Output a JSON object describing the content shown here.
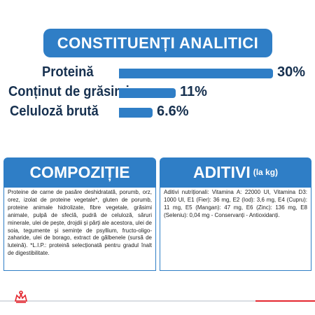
{
  "banner": {
    "title": "CONSTITUENȚI ANALITICI"
  },
  "analytics": [
    {
      "label": "Proteină",
      "value": "30%",
      "fraction": 0.3
    },
    {
      "label": "Conținut de grăsimi",
      "value": "11%",
      "fraction": 0.11
    },
    {
      "label": "Celuloză brută",
      "value": "6.6%",
      "fraction": 0.066
    }
  ],
  "composition": {
    "title": "COMPOZIȚIE",
    "text": "Proteine de carne de pasăre deshidratată, porumb, orz, orez, izolat de proteine vegetale*, gluten de porumb, proteine animale hidrolizate, fibre vegetale, grăsimi animale, pulpă de sfeclă, pudră de celuloză, săruri minerale, ulei de pește, drojdii și părți ale acestora, ulei de soia, tegumente și semințe de psyllium, fructo-oligo-zaharide, ulei de borago, extract de gălbenele (sursă de luteină). *L.I.P.: proteină selecționată pentru gradul înalt de digestibilitate."
  },
  "additives": {
    "title": "ADITIVI",
    "unit": "(la kg)",
    "text": "Aditivi nutriționali: Vitamina A: 22000 UI, Vitamina D3: 1000 UI, E1 (Fier): 36 mg, E2 (Iod): 3,6 mg, E4 (Cupru): 11 mg, E5 (Mangan): 47 mg, E6 (Zinc): 136 mg, E8 (Seleniu): 0,04 mg - Conservanți - Antioxidanți."
  },
  "colors": {
    "accent_blue": "#2f7ec6",
    "text_navy": "#16304f",
    "brand_red": "#e4272f"
  },
  "footer": {
    "logo_icon": "crown-icon"
  }
}
